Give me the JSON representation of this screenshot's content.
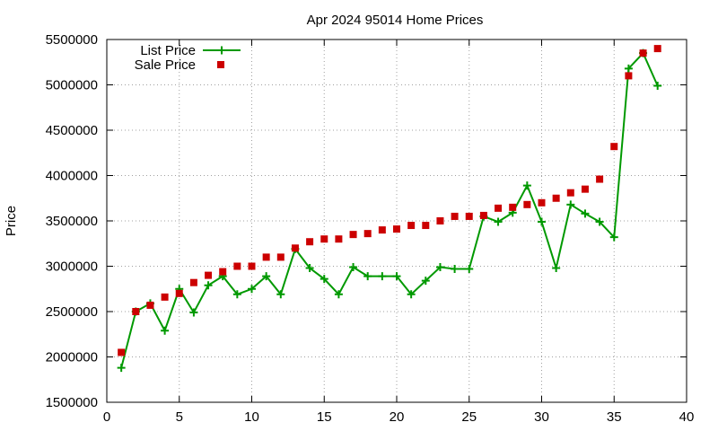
{
  "chart_data": {
    "type": "line",
    "title": "Apr 2024 95014 Home Prices",
    "ylabel": "Price",
    "xlabel": "",
    "xlim": [
      0,
      40
    ],
    "ylim": [
      1500000,
      5500000
    ],
    "xticks": [
      0,
      5,
      10,
      15,
      20,
      25,
      30,
      35,
      40
    ],
    "yticks": [
      1500000,
      2000000,
      2500000,
      3000000,
      3500000,
      4000000,
      4500000,
      5000000,
      5500000
    ],
    "grid": true,
    "legend_position": "top-left",
    "series": [
      {
        "name": "List Price",
        "style": "line-plus",
        "color": "#009900",
        "x": [
          1,
          2,
          3,
          4,
          5,
          6,
          7,
          8,
          9,
          10,
          11,
          12,
          13,
          14,
          15,
          16,
          17,
          18,
          19,
          20,
          21,
          22,
          23,
          24,
          25,
          26,
          27,
          28,
          29,
          30,
          31,
          32,
          33,
          34,
          35,
          36,
          37,
          38
        ],
        "y": [
          1880000,
          2500000,
          2590000,
          2290000,
          2750000,
          2490000,
          2790000,
          2890000,
          2690000,
          2750000,
          2890000,
          2690000,
          3190000,
          2980000,
          2860000,
          2690000,
          2990000,
          2890000,
          2890000,
          2890000,
          2690000,
          2840000,
          2990000,
          2970000,
          2970000,
          3550000,
          3490000,
          3590000,
          3890000,
          3490000,
          2980000,
          3680000,
          3580000,
          3490000,
          3320000,
          5180000,
          5350000,
          4990000
        ]
      },
      {
        "name": "Sale Price",
        "style": "square-points",
        "color": "#cc0000",
        "x": [
          1,
          2,
          3,
          4,
          5,
          6,
          7,
          8,
          9,
          10,
          11,
          12,
          13,
          14,
          15,
          16,
          17,
          18,
          19,
          20,
          21,
          22,
          23,
          24,
          25,
          26,
          27,
          28,
          29,
          30,
          31,
          32,
          33,
          34,
          35,
          36,
          37,
          38
        ],
        "y": [
          2050000,
          2500000,
          2570000,
          2660000,
          2700000,
          2820000,
          2900000,
          2940000,
          3000000,
          3000000,
          3100000,
          3100000,
          3200000,
          3270000,
          3300000,
          3300000,
          3350000,
          3360000,
          3400000,
          3410000,
          3450000,
          3450000,
          3500000,
          3550000,
          3550000,
          3560000,
          3640000,
          3650000,
          3680000,
          3700000,
          3750000,
          3810000,
          3850000,
          3960000,
          4320000,
          5100000,
          5350000,
          5400000
        ]
      }
    ]
  }
}
